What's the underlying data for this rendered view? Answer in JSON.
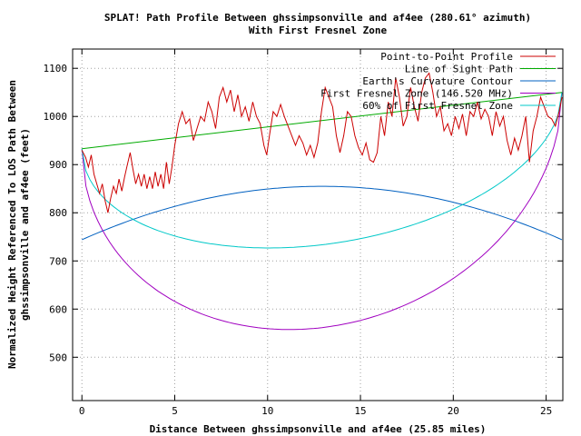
{
  "chart_data": {
    "type": "line",
    "title": "SPLAT! Path Profile Between ghssimpsonville and af4ee (280.61° azimuth)",
    "subtitle": "With First Fresnel Zone",
    "xlabel": "Distance Between ghssimpsonville and af4ee (25.85 miles)",
    "ylabel_line1": "Normalized Height Referenced To LOS Path Between",
    "ylabel_line2": "ghssimpsonville and af4ee (feet)",
    "xlim": [
      -0.5,
      25.9
    ],
    "ylim": [
      410,
      1140
    ],
    "x_ticks": [
      0,
      5,
      10,
      15,
      20,
      25
    ],
    "y_ticks": [
      500,
      600,
      700,
      800,
      900,
      1000,
      1100
    ],
    "grid": true,
    "legend_position": "top-right",
    "series": [
      {
        "name": "Point-to-Point Profile",
        "color": "#cc0000",
        "points": [
          [
            0,
            930
          ],
          [
            0.2,
            915
          ],
          [
            0.35,
            895
          ],
          [
            0.5,
            920
          ],
          [
            0.65,
            880
          ],
          [
            0.8,
            860
          ],
          [
            0.95,
            840
          ],
          [
            1.1,
            860
          ],
          [
            1.25,
            825
          ],
          [
            1.4,
            800
          ],
          [
            1.55,
            830
          ],
          [
            1.7,
            855
          ],
          [
            1.85,
            840
          ],
          [
            2.0,
            870
          ],
          [
            2.15,
            845
          ],
          [
            2.3,
            875
          ],
          [
            2.45,
            900
          ],
          [
            2.6,
            925
          ],
          [
            2.75,
            890
          ],
          [
            2.9,
            860
          ],
          [
            3.05,
            880
          ],
          [
            3.2,
            855
          ],
          [
            3.35,
            880
          ],
          [
            3.5,
            850
          ],
          [
            3.65,
            875
          ],
          [
            3.8,
            850
          ],
          [
            3.95,
            885
          ],
          [
            4.1,
            855
          ],
          [
            4.25,
            880
          ],
          [
            4.4,
            850
          ],
          [
            4.55,
            905
          ],
          [
            4.7,
            860
          ],
          [
            4.85,
            895
          ],
          [
            5.0,
            940
          ],
          [
            5.2,
            985
          ],
          [
            5.4,
            1010
          ],
          [
            5.6,
            985
          ],
          [
            5.8,
            995
          ],
          [
            6.0,
            950
          ],
          [
            6.2,
            975
          ],
          [
            6.4,
            1000
          ],
          [
            6.6,
            990
          ],
          [
            6.8,
            1030
          ],
          [
            7.0,
            1010
          ],
          [
            7.2,
            975
          ],
          [
            7.4,
            1040
          ],
          [
            7.6,
            1060
          ],
          [
            7.8,
            1030
          ],
          [
            8.0,
            1055
          ],
          [
            8.2,
            1010
          ],
          [
            8.4,
            1045
          ],
          [
            8.6,
            1000
          ],
          [
            8.8,
            1020
          ],
          [
            9.0,
            990
          ],
          [
            9.2,
            1030
          ],
          [
            9.4,
            1000
          ],
          [
            9.6,
            985
          ],
          [
            9.8,
            940
          ],
          [
            9.95,
            920
          ],
          [
            10.1,
            960
          ],
          [
            10.3,
            1010
          ],
          [
            10.5,
            1000
          ],
          [
            10.7,
            1025
          ],
          [
            10.9,
            1000
          ],
          [
            11.1,
            980
          ],
          [
            11.3,
            960
          ],
          [
            11.5,
            940
          ],
          [
            11.7,
            960
          ],
          [
            11.9,
            945
          ],
          [
            12.1,
            920
          ],
          [
            12.3,
            940
          ],
          [
            12.5,
            915
          ],
          [
            12.7,
            945
          ],
          [
            12.9,
            1010
          ],
          [
            13.1,
            1060
          ],
          [
            13.3,
            1040
          ],
          [
            13.5,
            1020
          ],
          [
            13.7,
            960
          ],
          [
            13.9,
            925
          ],
          [
            14.1,
            960
          ],
          [
            14.3,
            1010
          ],
          [
            14.5,
            1000
          ],
          [
            14.7,
            960
          ],
          [
            14.9,
            935
          ],
          [
            15.1,
            920
          ],
          [
            15.3,
            945
          ],
          [
            15.5,
            910
          ],
          [
            15.7,
            905
          ],
          [
            15.9,
            925
          ],
          [
            16.1,
            1000
          ],
          [
            16.3,
            960
          ],
          [
            16.5,
            1030
          ],
          [
            16.7,
            1000
          ],
          [
            16.9,
            1080
          ],
          [
            17.1,
            1040
          ],
          [
            17.3,
            980
          ],
          [
            17.5,
            1000
          ],
          [
            17.7,
            1060
          ],
          [
            17.9,
            1020
          ],
          [
            18.1,
            990
          ],
          [
            18.3,
            1050
          ],
          [
            18.5,
            1080
          ],
          [
            18.7,
            1090
          ],
          [
            18.9,
            1050
          ],
          [
            19.1,
            1000
          ],
          [
            19.3,
            1020
          ],
          [
            19.5,
            970
          ],
          [
            19.7,
            985
          ],
          [
            19.9,
            960
          ],
          [
            20.1,
            1000
          ],
          [
            20.3,
            975
          ],
          [
            20.5,
            1005
          ],
          [
            20.7,
            960
          ],
          [
            20.9,
            1010
          ],
          [
            21.1,
            1000
          ],
          [
            21.3,
            1030
          ],
          [
            21.5,
            995
          ],
          [
            21.7,
            1015
          ],
          [
            21.9,
            1000
          ],
          [
            22.1,
            960
          ],
          [
            22.3,
            1010
          ],
          [
            22.5,
            980
          ],
          [
            22.7,
            1000
          ],
          [
            22.9,
            950
          ],
          [
            23.1,
            920
          ],
          [
            23.3,
            955
          ],
          [
            23.5,
            930
          ],
          [
            23.7,
            960
          ],
          [
            23.9,
            1000
          ],
          [
            24.1,
            905
          ],
          [
            24.3,
            970
          ],
          [
            24.5,
            1000
          ],
          [
            24.7,
            1040
          ],
          [
            24.9,
            1020
          ],
          [
            25.1,
            1000
          ],
          [
            25.3,
            995
          ],
          [
            25.5,
            980
          ],
          [
            25.7,
            1010
          ],
          [
            25.85,
            1040
          ]
        ]
      },
      {
        "name": "Line of Sight Path",
        "color": "#00aa00",
        "points": [
          [
            0,
            933
          ],
          [
            25.85,
            1050
          ]
        ]
      },
      {
        "name": "Earth's Curvature Contour",
        "color": "#0060c0",
        "curve": "parabola",
        "start": 744,
        "peak": 855,
        "end": 744
      },
      {
        "name": "First Fresnel Zone (146.520 MHz)",
        "color": "#a000c0",
        "curve": "fresnel",
        "depth": 430
      },
      {
        "name": "60% of First Fresnel Zone",
        "color": "#00c8c8",
        "curve": "fresnel",
        "depth": 258
      }
    ]
  }
}
